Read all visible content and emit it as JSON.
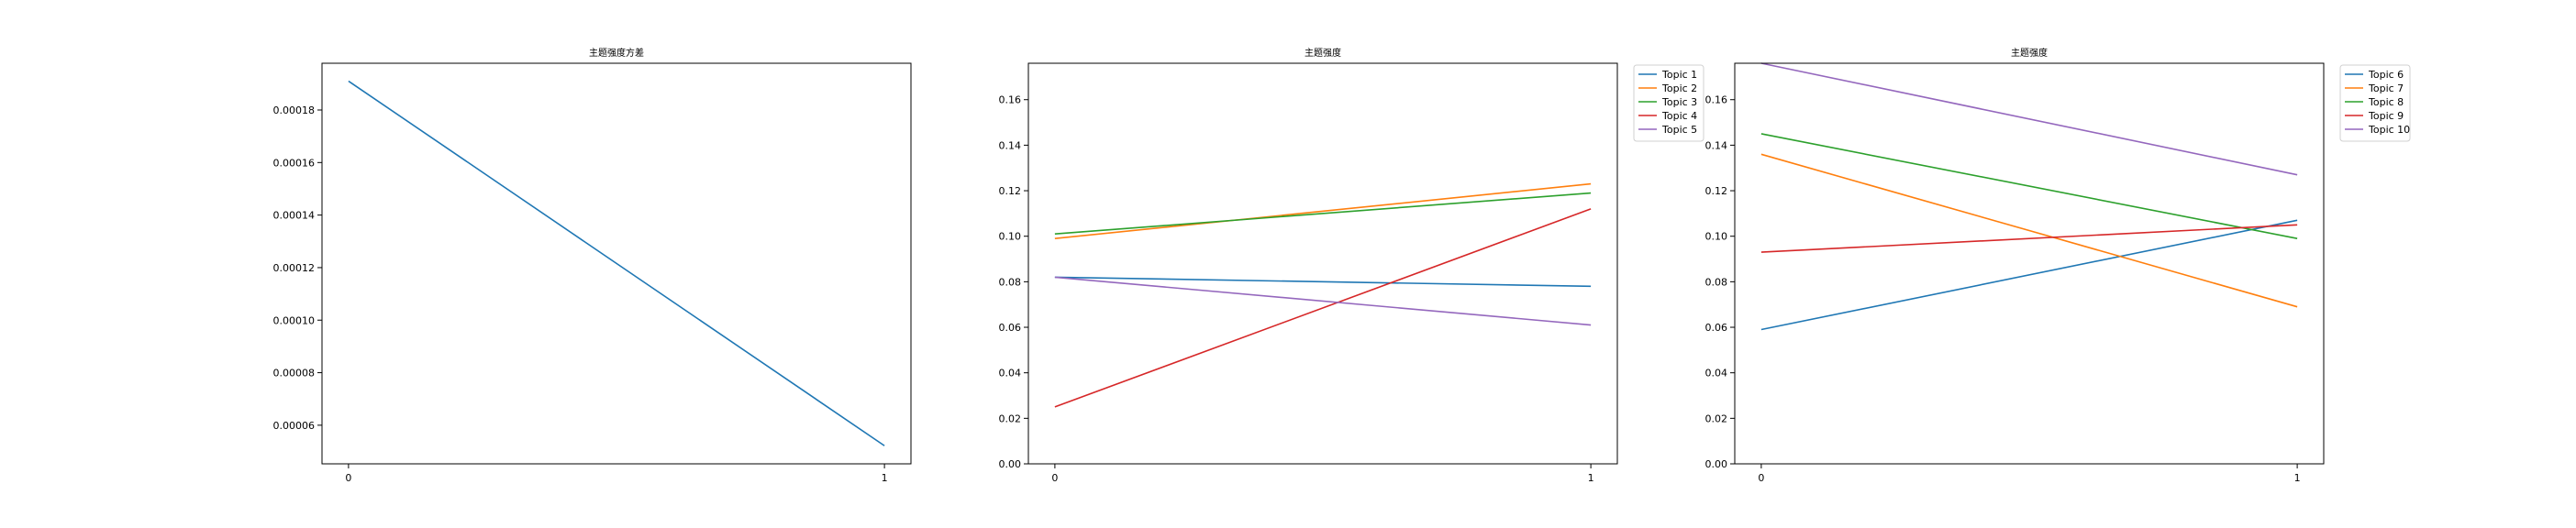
{
  "chart_data": [
    {
      "type": "line",
      "title": "主题强度方差",
      "xlabel": "",
      "ylabel": "",
      "x": [
        0,
        1
      ],
      "xticks": [
        "0",
        "1"
      ],
      "yticks": [
        "0.00006",
        "0.00008",
        "0.00010",
        "0.00012",
        "0.00014",
        "0.00016",
        "0.00018"
      ],
      "ylim": [
        4.53e-05,
        0.0001978
      ],
      "grid": false,
      "legend": "none",
      "series": [
        {
          "values": [
            0.000191,
            5.22e-05
          ],
          "color": "#1f77b4"
        }
      ]
    },
    {
      "type": "line",
      "title": "主题强度",
      "xlabel": "",
      "ylabel": "",
      "x": [
        0,
        1
      ],
      "xticks": [
        "0",
        "1"
      ],
      "yticks": [
        "0.00",
        "0.02",
        "0.04",
        "0.06",
        "0.08",
        "0.10",
        "0.12",
        "0.14",
        "0.16"
      ],
      "ylim": [
        0,
        0.176
      ],
      "grid": false,
      "legend": "outside-upper-right",
      "series": [
        {
          "name": "Topic 1",
          "values": [
            0.082,
            0.078
          ],
          "color": "#1f77b4"
        },
        {
          "name": "Topic 2",
          "values": [
            0.099,
            0.123
          ],
          "color": "#ff7f0e"
        },
        {
          "name": "Topic 3",
          "values": [
            0.101,
            0.119
          ],
          "color": "#2ca02c"
        },
        {
          "name": "Topic 4",
          "values": [
            0.025,
            0.112
          ],
          "color": "#d62728"
        },
        {
          "name": "Topic 5",
          "values": [
            0.082,
            0.061
          ],
          "color": "#9467bd"
        }
      ]
    },
    {
      "type": "line",
      "title": "主题强度",
      "xlabel": "",
      "ylabel": "",
      "x": [
        0,
        1
      ],
      "xticks": [
        "0",
        "1"
      ],
      "yticks": [
        "0.00",
        "0.02",
        "0.04",
        "0.06",
        "0.08",
        "0.10",
        "0.12",
        "0.14",
        "0.16"
      ],
      "ylim": [
        0,
        0.176
      ],
      "grid": false,
      "legend": "outside-upper-right",
      "series": [
        {
          "name": "Topic 6",
          "values": [
            0.059,
            0.107
          ],
          "color": "#1f77b4"
        },
        {
          "name": "Topic 7",
          "values": [
            0.136,
            0.069
          ],
          "color": "#ff7f0e"
        },
        {
          "name": "Topic 8",
          "values": [
            0.145,
            0.099
          ],
          "color": "#2ca02c"
        },
        {
          "name": "Topic 9",
          "values": [
            0.093,
            0.105
          ],
          "color": "#d62728"
        },
        {
          "name": "Topic 10",
          "values": [
            0.176,
            0.127
          ],
          "color": "#9467bd"
        }
      ]
    }
  ]
}
